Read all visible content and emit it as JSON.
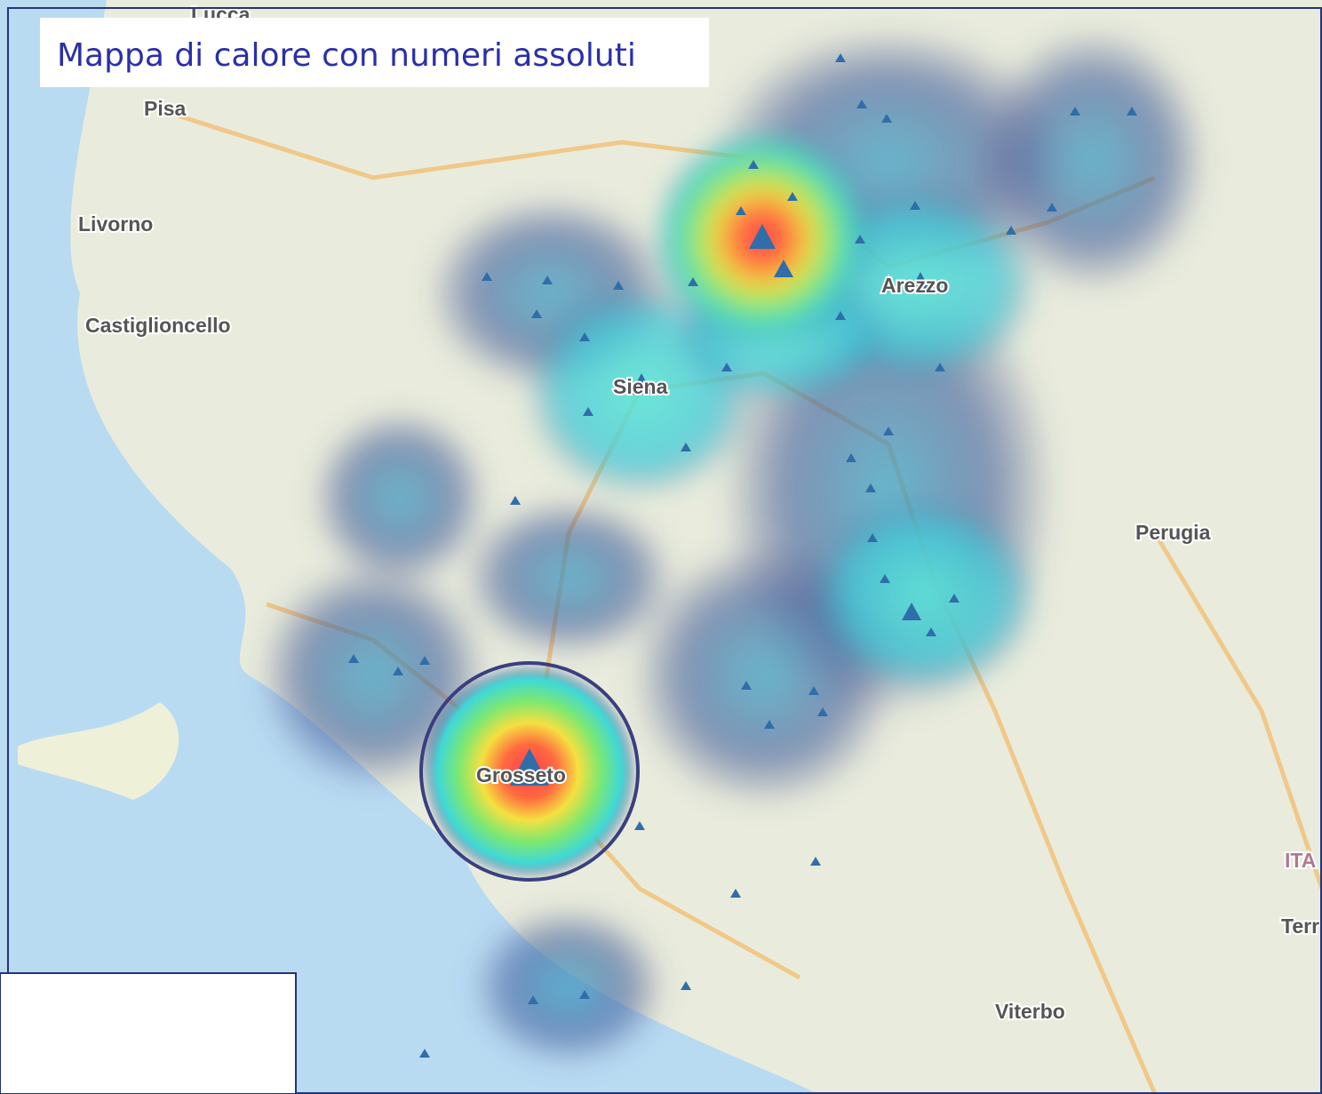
{
  "title": "Mappa di calore con numeri assoluti",
  "places": [
    "Lucca",
    "Pisa",
    "Livorno",
    "Castiglioncello",
    "Siena",
    "Arezzo",
    "Grosseto",
    "Perugia",
    "ITA",
    "Terr",
    "Viterbo"
  ]
}
